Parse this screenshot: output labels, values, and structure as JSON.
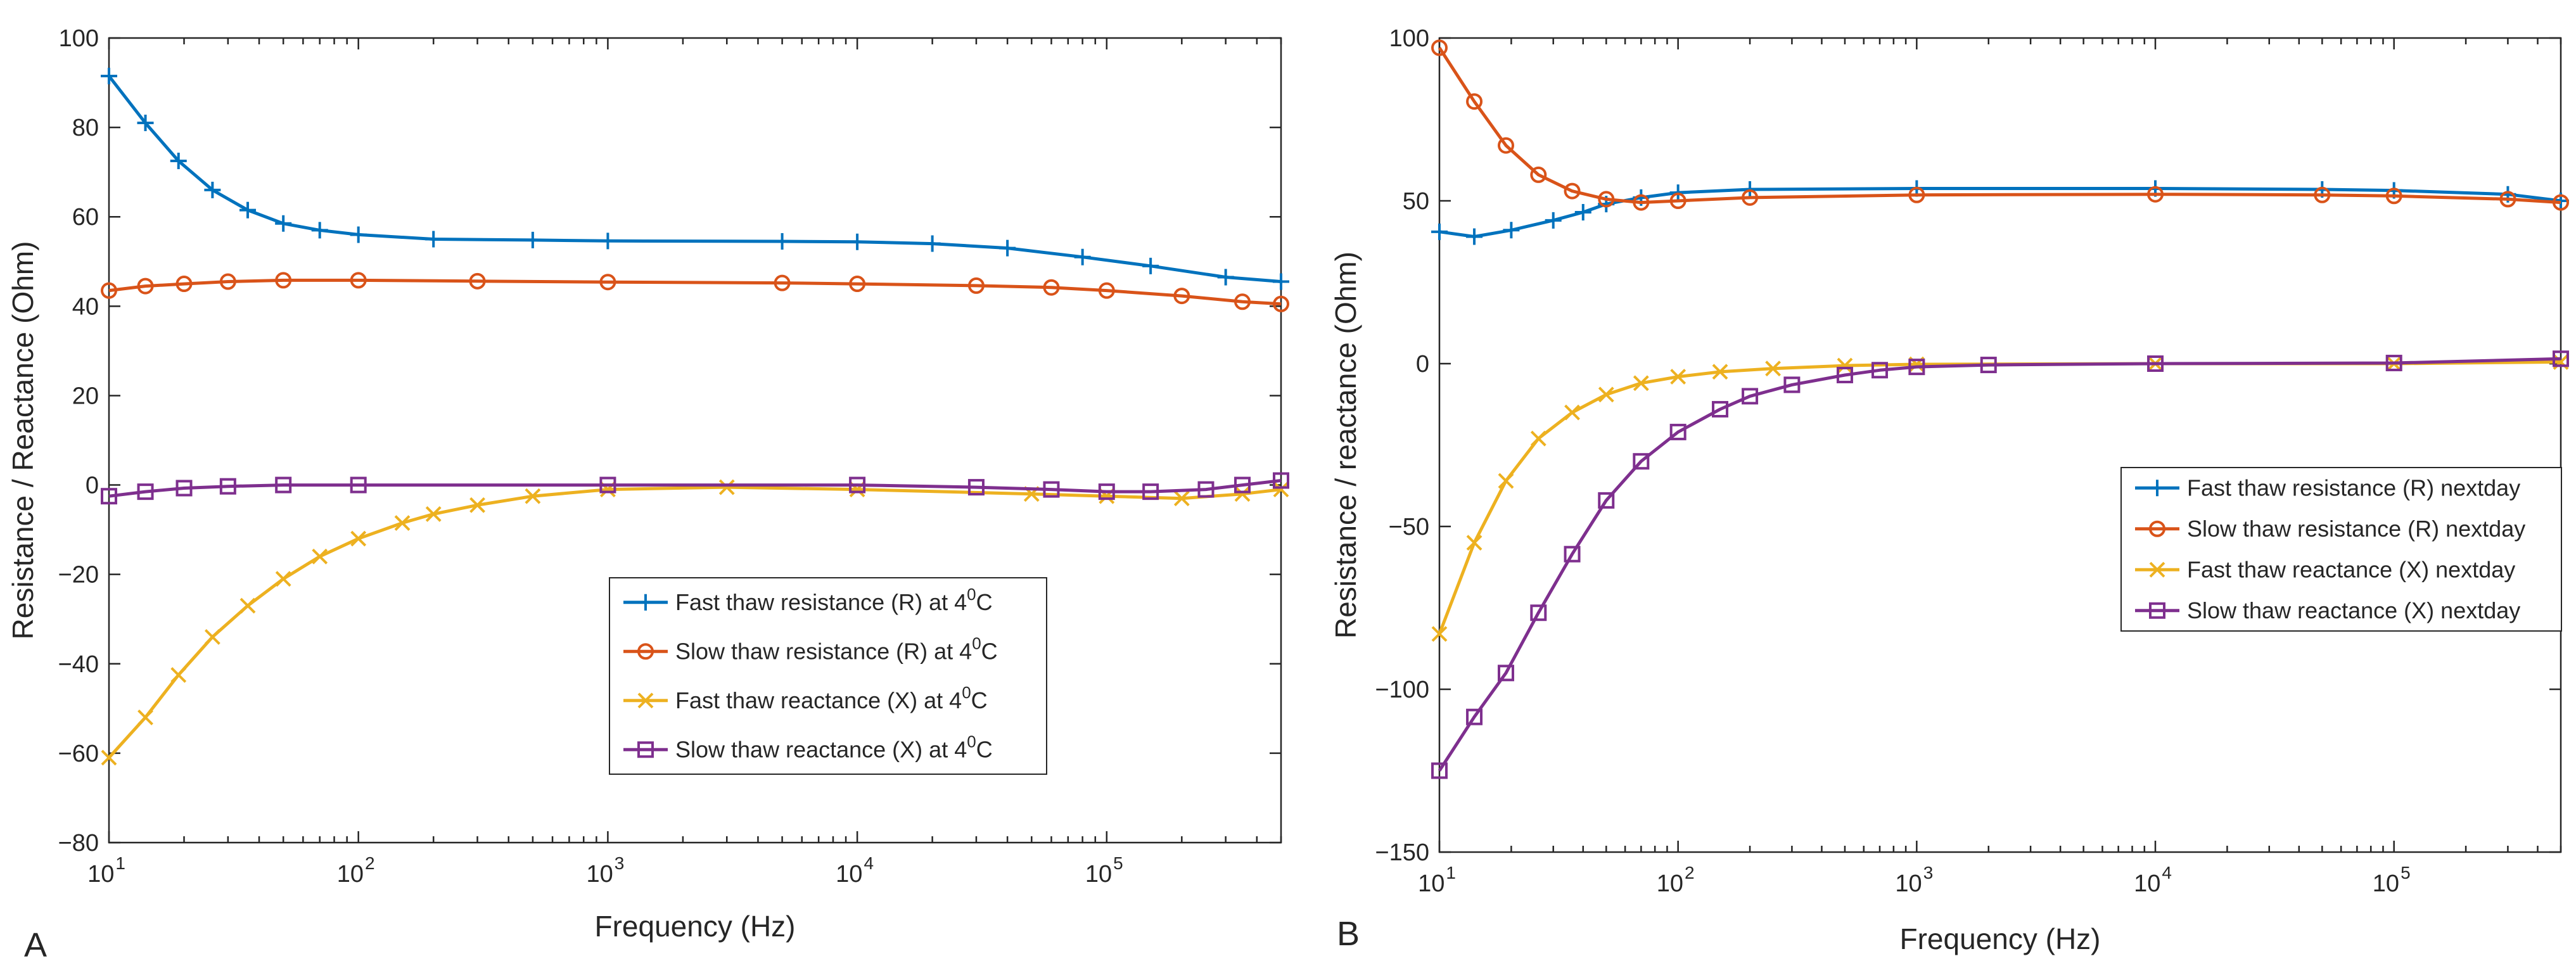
{
  "figure": {
    "colors": {
      "fast_R": "#0072BD",
      "slow_R": "#D95319",
      "fast_X": "#EDB120",
      "slow_X": "#7E2F8E"
    }
  },
  "chart_data": [
    {
      "type": "line",
      "panel": "A",
      "xlabel": "Frequency (Hz)",
      "ylabel": "Resistance / Reactance (Ohm)",
      "xscale": "log",
      "xlim": [
        10,
        500000
      ],
      "ylim": [
        -80,
        100
      ],
      "yticks": [
        -80,
        -60,
        -40,
        -20,
        0,
        20,
        40,
        60,
        80,
        100
      ],
      "xtick_exponents": [
        1,
        2,
        3,
        4,
        5
      ],
      "legend_position": "lower-right",
      "series": [
        {
          "name": "Fast thaw resistance (R) at 4",
          "name_sup": "0",
          "name_tail": "C",
          "color": "#0072BD",
          "marker": "plus",
          "points": [
            [
              10,
              91.5
            ],
            [
              14,
              81
            ],
            [
              19,
              72.5
            ],
            [
              26,
              66
            ],
            [
              36,
              61.5
            ],
            [
              50,
              58.5
            ],
            [
              70,
              57
            ],
            [
              100,
              56
            ],
            [
              200,
              55
            ],
            [
              500,
              54.8
            ],
            [
              1000,
              54.6
            ],
            [
              5000,
              54.5
            ],
            [
              10000,
              54.4
            ],
            [
              20000,
              54
            ],
            [
              40000,
              53
            ],
            [
              80000,
              51
            ],
            [
              150000,
              49
            ],
            [
              300000,
              46.5
            ],
            [
              500000,
              45.5
            ]
          ]
        },
        {
          "name": "Slow thaw resistance (R) at 4",
          "name_sup": "0",
          "name_tail": "C",
          "color": "#D95319",
          "marker": "circle",
          "points": [
            [
              10,
              43.5
            ],
            [
              14,
              44.5
            ],
            [
              20,
              45
            ],
            [
              30,
              45.5
            ],
            [
              50,
              45.8
            ],
            [
              100,
              45.8
            ],
            [
              300,
              45.6
            ],
            [
              1000,
              45.4
            ],
            [
              5000,
              45.2
            ],
            [
              10000,
              45
            ],
            [
              30000,
              44.6
            ],
            [
              60000,
              44.2
            ],
            [
              100000,
              43.5
            ],
            [
              200000,
              42.3
            ],
            [
              350000,
              41
            ],
            [
              500000,
              40.5
            ]
          ]
        },
        {
          "name": "Fast thaw reactance (X) at 4",
          "name_sup": "0",
          "name_tail": "C",
          "color": "#EDB120",
          "marker": "x",
          "points": [
            [
              10,
              -61
            ],
            [
              14,
              -52
            ],
            [
              19,
              -42.5
            ],
            [
              26,
              -34
            ],
            [
              36,
              -27
            ],
            [
              50,
              -21
            ],
            [
              70,
              -16
            ],
            [
              100,
              -12
            ],
            [
              150,
              -8.5
            ],
            [
              200,
              -6.5
            ],
            [
              300,
              -4.5
            ],
            [
              500,
              -2.5
            ],
            [
              1000,
              -1
            ],
            [
              3000,
              -0.5
            ],
            [
              10000,
              -1
            ],
            [
              50000,
              -2
            ],
            [
              100000,
              -2.5
            ],
            [
              200000,
              -3
            ],
            [
              350000,
              -2
            ],
            [
              500000,
              -1
            ]
          ]
        },
        {
          "name": "Slow thaw reactance (X) at 4",
          "name_sup": "0",
          "name_tail": "C",
          "color": "#7E2F8E",
          "marker": "square",
          "points": [
            [
              10,
              -2.5
            ],
            [
              14,
              -1.5
            ],
            [
              20,
              -0.7
            ],
            [
              30,
              -0.3
            ],
            [
              50,
              0
            ],
            [
              100,
              0
            ],
            [
              1000,
              0
            ],
            [
              10000,
              0
            ],
            [
              30000,
              -0.5
            ],
            [
              60000,
              -1
            ],
            [
              100000,
              -1.5
            ],
            [
              150000,
              -1.5
            ],
            [
              250000,
              -1
            ],
            [
              350000,
              0
            ],
            [
              500000,
              1
            ]
          ]
        }
      ]
    },
    {
      "type": "line",
      "panel": "B",
      "xlabel": "Frequency (Hz)",
      "ylabel": "Resistance / reactance (Ohm)",
      "xscale": "log",
      "xlim": [
        10,
        500000
      ],
      "ylim": [
        -150,
        100
      ],
      "yticks": [
        -150,
        -100,
        -50,
        0,
        50,
        100
      ],
      "xtick_exponents": [
        1,
        2,
        3,
        4,
        5
      ],
      "legend_position": "right",
      "series": [
        {
          "name": "Fast thaw resistance (R) nextday",
          "color": "#0072BD",
          "marker": "plus",
          "points": [
            [
              10,
              40.5
            ],
            [
              14,
              39
            ],
            [
              20,
              41
            ],
            [
              30,
              44
            ],
            [
              40,
              46.5
            ],
            [
              50,
              49
            ],
            [
              70,
              51
            ],
            [
              100,
              52.5
            ],
            [
              200,
              53.5
            ],
            [
              1000,
              53.8
            ],
            [
              10000,
              53.8
            ],
            [
              50000,
              53.5
            ],
            [
              100000,
              53.2
            ],
            [
              300000,
              52
            ],
            [
              500000,
              50
            ]
          ]
        },
        {
          "name": "Slow thaw resistance (R) nextday",
          "color": "#D95319",
          "marker": "circle",
          "points": [
            [
              10,
              97
            ],
            [
              14,
              80.5
            ],
            [
              19,
              67
            ],
            [
              26,
              58
            ],
            [
              36,
              53
            ],
            [
              50,
              50.5
            ],
            [
              70,
              49.5
            ],
            [
              100,
              50
            ],
            [
              200,
              51
            ],
            [
              1000,
              51.8
            ],
            [
              10000,
              52
            ],
            [
              50000,
              51.8
            ],
            [
              100000,
              51.5
            ],
            [
              300000,
              50.5
            ],
            [
              500000,
              49.5
            ]
          ]
        },
        {
          "name": "Fast thaw reactance (X) nextday",
          "color": "#EDB120",
          "marker": "x",
          "points": [
            [
              10,
              -83
            ],
            [
              14,
              -55
            ],
            [
              19,
              -36
            ],
            [
              26,
              -23
            ],
            [
              36,
              -15
            ],
            [
              50,
              -9.5
            ],
            [
              70,
              -6
            ],
            [
              100,
              -4
            ],
            [
              150,
              -2.5
            ],
            [
              250,
              -1.5
            ],
            [
              500,
              -0.6
            ],
            [
              1000,
              -0.2
            ],
            [
              10000,
              0
            ],
            [
              100000,
              0
            ],
            [
              500000,
              0.5
            ]
          ]
        },
        {
          "name": "Slow thaw reactance (X) nextday",
          "color": "#7E2F8E",
          "marker": "square",
          "points": [
            [
              10,
              -125
            ],
            [
              14,
              -108.5
            ],
            [
              19,
              -95
            ],
            [
              26,
              -76.5
            ],
            [
              36,
              -58.5
            ],
            [
              50,
              -42
            ],
            [
              70,
              -30
            ],
            [
              100,
              -21
            ],
            [
              150,
              -14
            ],
            [
              200,
              -10
            ],
            [
              300,
              -6.5
            ],
            [
              500,
              -3.5
            ],
            [
              700,
              -2
            ],
            [
              1000,
              -1
            ],
            [
              2000,
              -0.4
            ],
            [
              10000,
              0
            ],
            [
              100000,
              0.2
            ],
            [
              500000,
              1.5
            ]
          ]
        }
      ]
    }
  ]
}
